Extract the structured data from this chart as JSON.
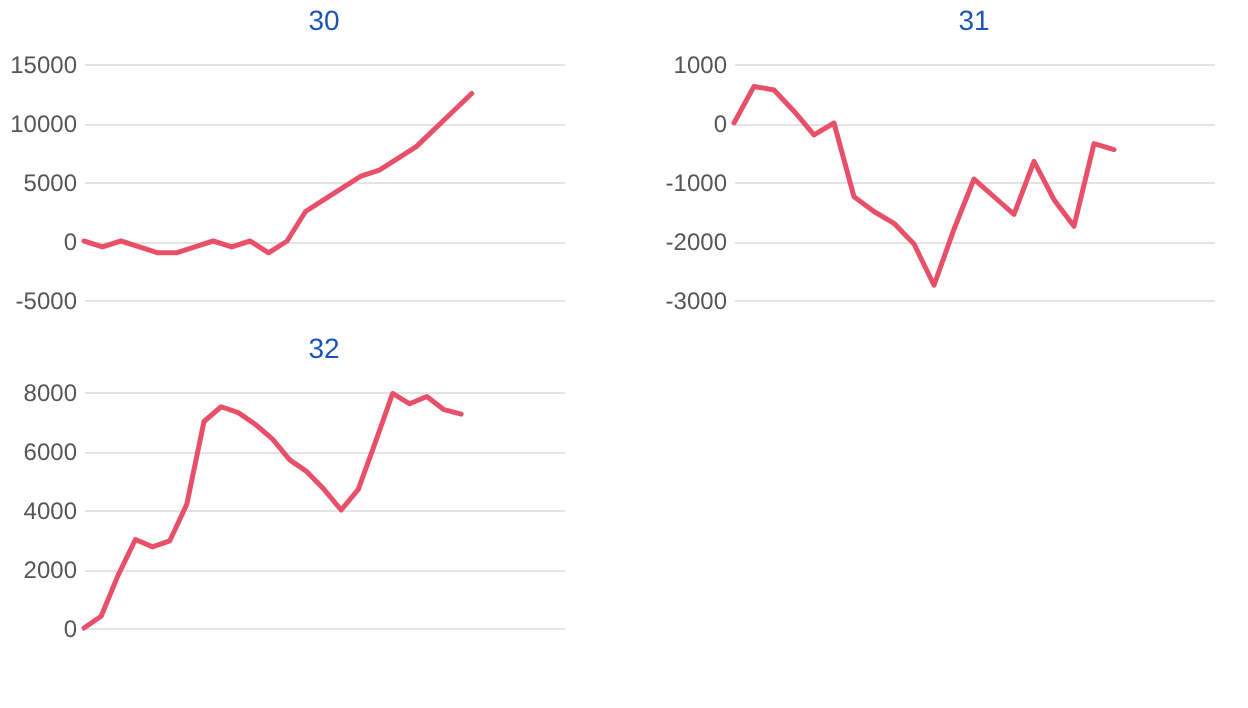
{
  "chart_data": [
    {
      "type": "line",
      "title": "30",
      "categories": [
        null,
        null,
        null,
        null,
        null,
        null,
        null,
        null,
        null,
        null,
        null,
        null,
        null,
        null,
        null,
        null,
        null,
        null,
        null,
        null,
        null,
        null,
        null,
        null,
        null,
        null,
        null
      ],
      "series": [
        {
          "color": "#e8506a",
          "values": [
            0,
            -500,
            0,
            -500,
            -1000,
            -1000,
            -500,
            0,
            -500,
            0,
            -1000,
            0,
            2500,
            3500,
            4500,
            5500,
            6000,
            7000,
            8000,
            9500,
            11000,
            12500,
            null,
            null,
            null,
            null,
            null
          ]
        }
      ],
      "ylim": [
        -5000,
        15000
      ],
      "yticks": [
        -5000,
        0,
        5000,
        10000,
        15000
      ],
      "grid": "y",
      "tick_labels": "y",
      "marker": "none",
      "line_style": "solid"
    },
    {
      "type": "line",
      "title": "31",
      "categories": [
        null,
        null,
        null,
        null,
        null,
        null,
        null,
        null,
        null,
        null,
        null,
        null,
        null,
        null,
        null,
        null,
        null,
        null,
        null,
        null,
        null,
        null,
        null,
        null,
        null
      ],
      "series": [
        {
          "color": "#e8506a",
          "values": [
            0,
            620,
            560,
            200,
            -200,
            0,
            -1250,
            -1500,
            -1700,
            -2050,
            -2750,
            -1800,
            -950,
            -1250,
            -1550,
            -650,
            -1300,
            -1750,
            -350,
            -450,
            null,
            null,
            null,
            null,
            null
          ]
        }
      ],
      "ylim": [
        -3000,
        1000
      ],
      "yticks": [
        -3000,
        -2000,
        -1000,
        0,
        1000
      ],
      "grid": "y",
      "tick_labels": "y",
      "marker": "none",
      "line_style": "solid"
    },
    {
      "type": "line",
      "title": "32",
      "categories": [
        null,
        null,
        null,
        null,
        null,
        null,
        null,
        null,
        null,
        null,
        null,
        null,
        null,
        null,
        null,
        null,
        null,
        null,
        null,
        null,
        null,
        null,
        null,
        null,
        null,
        null,
        null,
        null,
        null
      ],
      "series": [
        {
          "color": "#e8506a",
          "values": [
            0,
            400,
            1800,
            3000,
            2750,
            2950,
            4200,
            7000,
            7500,
            7300,
            6900,
            6400,
            5700,
            5300,
            4700,
            4000,
            4700,
            6300,
            7950,
            7600,
            7850,
            7400,
            7250,
            null,
            null,
            null,
            null,
            null,
            null
          ]
        }
      ],
      "ylim": [
        0,
        8000
      ],
      "yticks": [
        0,
        2000,
        4000,
        6000,
        8000
      ],
      "grid": "y",
      "tick_labels": "y",
      "marker": "none",
      "line_style": "solid"
    }
  ]
}
